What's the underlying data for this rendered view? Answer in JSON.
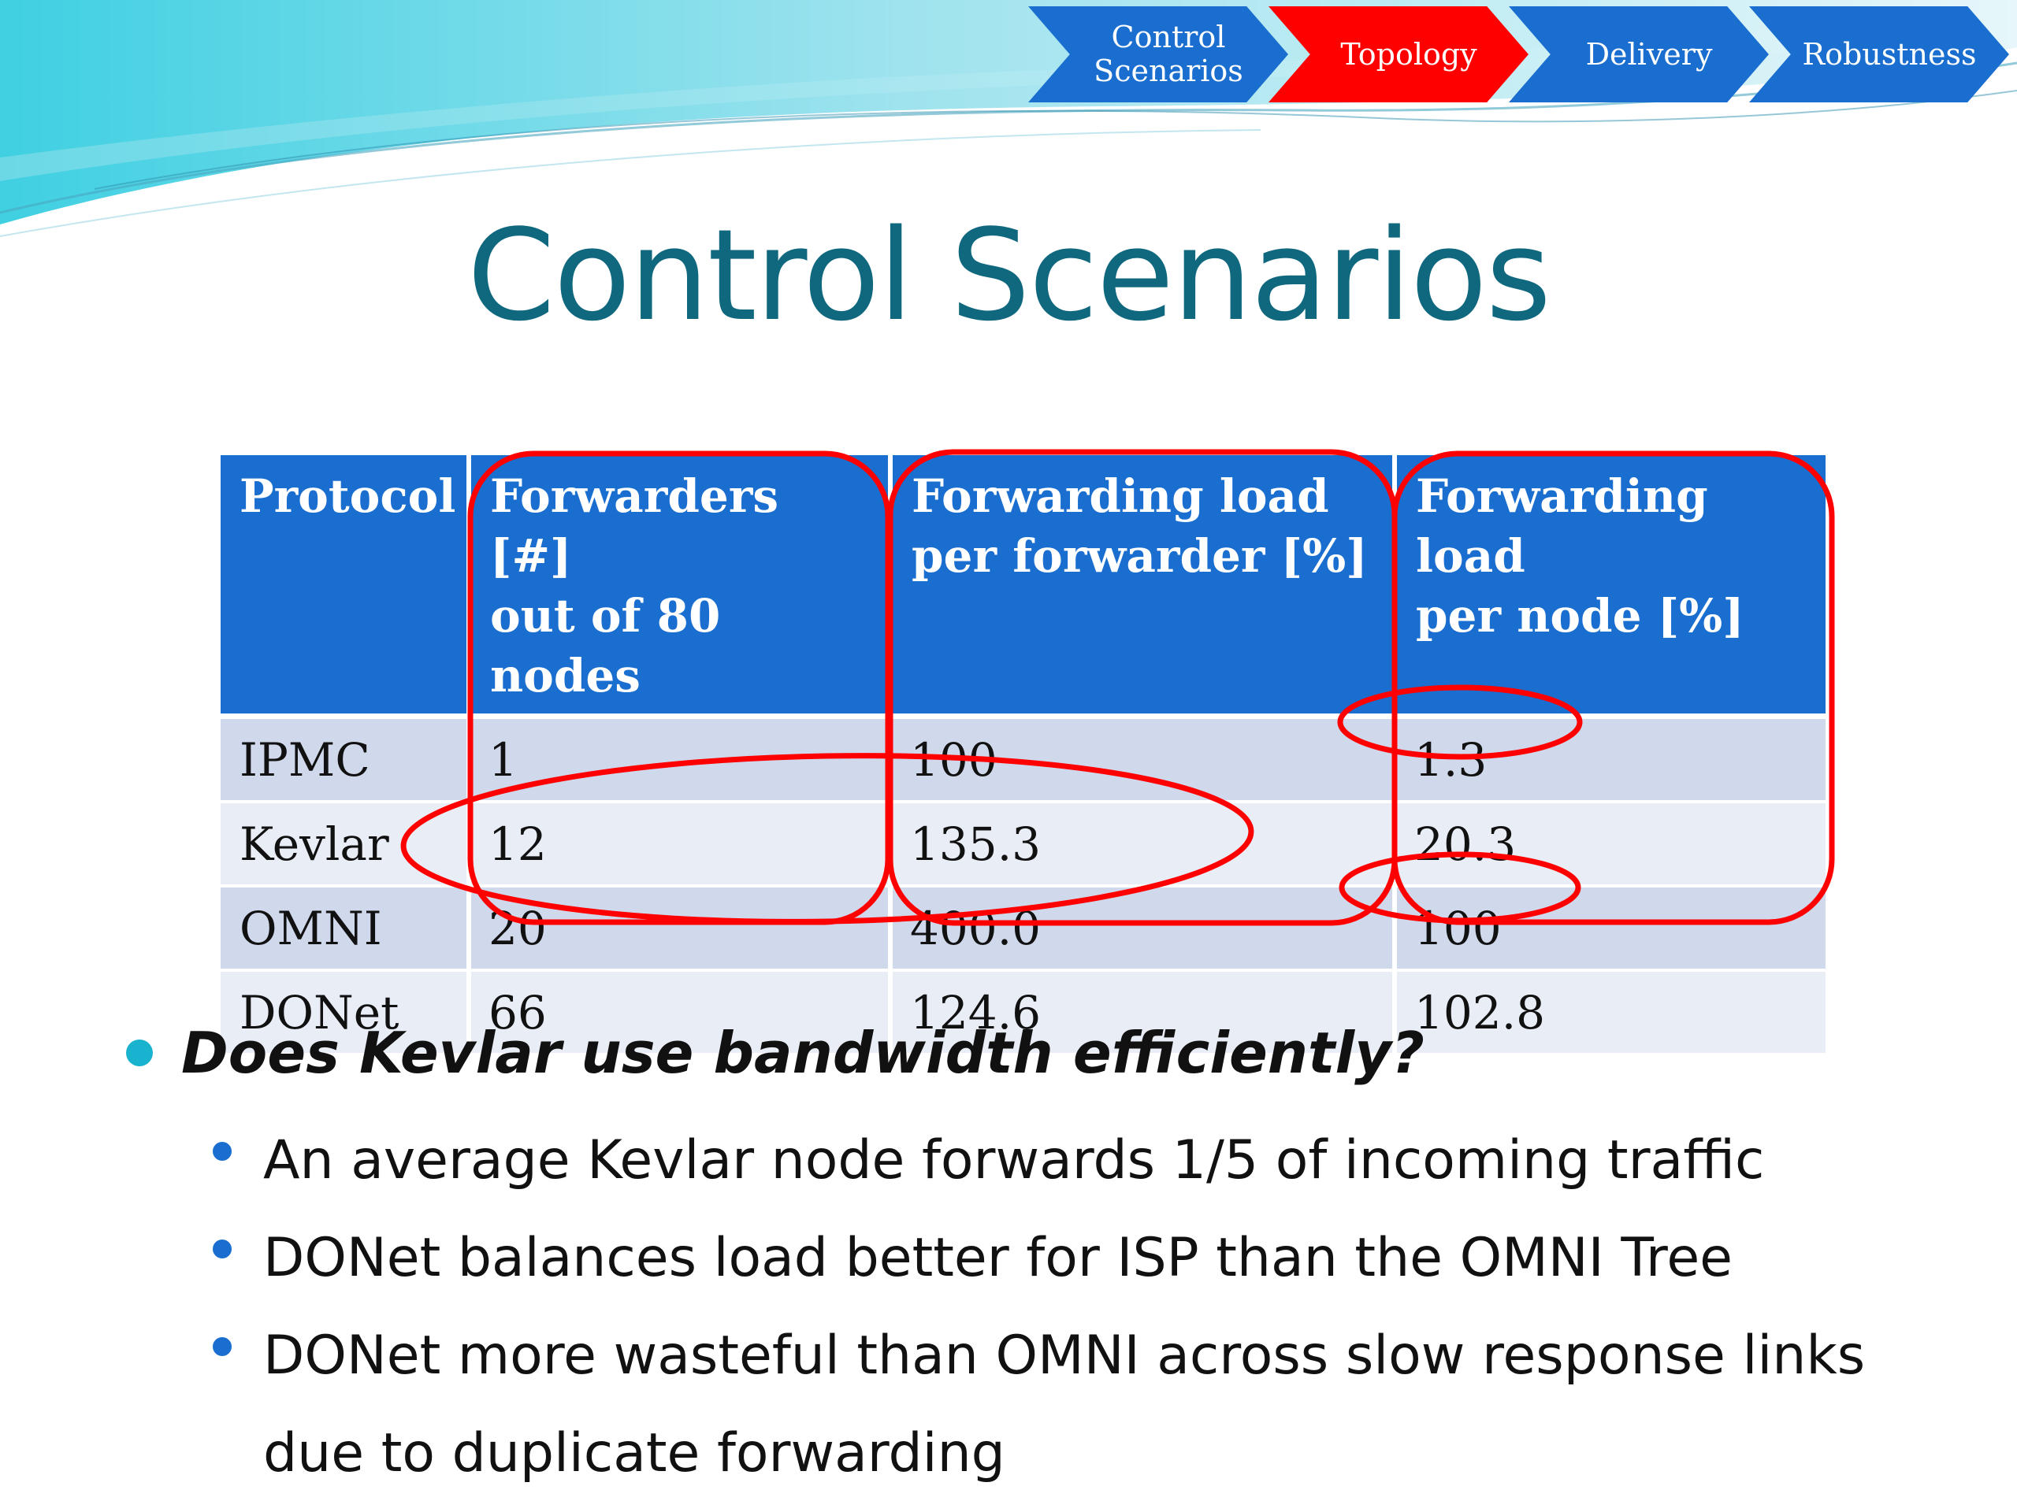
{
  "nav": {
    "items": [
      {
        "label": "Control\nScenarios",
        "color": "#1a6ed0"
      },
      {
        "label": "Topology",
        "color": "#ff0000",
        "active": true
      },
      {
        "label": "Delivery",
        "color": "#1a6ed0"
      },
      {
        "label": "Robustness",
        "color": "#1a6ed0"
      }
    ]
  },
  "slide": {
    "title": "Control Scenarios"
  },
  "table": {
    "headers": [
      "Protocol",
      "Forwarders [#]\nout of 80 nodes",
      "Forwarding load\nper forwarder [%]",
      "Forwarding load\nper node [%]"
    ],
    "rows": [
      [
        "IPMC",
        "1",
        "100",
        "1.3"
      ],
      [
        "Kevlar",
        "12",
        "135.3",
        "20.3"
      ],
      [
        "OMNI",
        "20",
        "400.0",
        "100"
      ],
      [
        "DONet",
        "66",
        "124.6",
        "102.8"
      ]
    ]
  },
  "bullets": {
    "main": "Does Kevlar use bandwidth efficiently?",
    "sub": [
      "An average Kevlar node forwards 1/5 of incoming traffic",
      "DONet balances load better for ISP than the OMNI Tree",
      "DONet more wasteful than OMNI across slow response links due to duplicate forwarding"
    ]
  },
  "colors": {
    "title": "#10687f",
    "table_header": "#1a6ed0",
    "row_dark": "#d0d8eb",
    "row_light": "#e9edf6",
    "annotation": "#ff0000",
    "bullet_main": "#1ab3cf",
    "bullet_sub": "#1a6ed0"
  }
}
